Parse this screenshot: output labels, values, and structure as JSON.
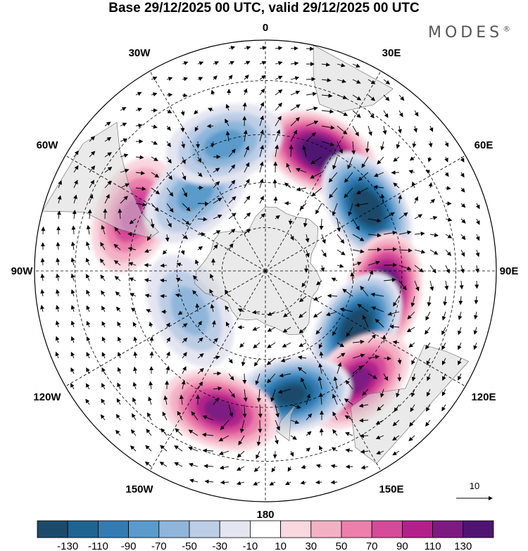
{
  "header": {
    "title": "Base 29/12/2025 00 UTC, valid 29/12/2025 00 UTC",
    "brand": "MODES",
    "brand_mark": "®"
  },
  "map": {
    "projection": "south-polar-stereographic",
    "longitude_labels": [
      "0",
      "30E",
      "60E",
      "90E",
      "120E",
      "150E",
      "180",
      "150W",
      "120W",
      "90W",
      "60W",
      "30W"
    ],
    "reference_vector": {
      "label": "10"
    },
    "anomaly_centers": [
      {
        "name": "positive-center",
        "lon": 25,
        "lat": -47,
        "value": 130
      },
      {
        "name": "negative-center",
        "lon": 58,
        "lat": -50,
        "value": -130
      },
      {
        "name": "positive-center",
        "lon": 100,
        "lat": -50,
        "value": 130
      },
      {
        "name": "negative-center",
        "lon": 122,
        "lat": -54,
        "value": -130
      },
      {
        "name": "positive-center",
        "lon": 140,
        "lat": -43,
        "value": 90
      },
      {
        "name": "negative-center",
        "lon": 168,
        "lat": -48,
        "value": -110
      },
      {
        "name": "positive-center",
        "lon": -162,
        "lat": -42,
        "value": 90
      },
      {
        "name": "negative-center",
        "lon": -118,
        "lat": -61,
        "value": -30
      },
      {
        "name": "positive-center",
        "lon": -67,
        "lat": -43,
        "value": 70
      },
      {
        "name": "negative-center",
        "lon": -42,
        "lat": -55,
        "value": -50
      },
      {
        "name": "negative-center",
        "lon": -18,
        "lat": -46,
        "value": -50
      }
    ]
  },
  "colorbar": {
    "tick_labels": [
      "-130",
      "-110",
      "-90",
      "-70",
      "-50",
      "-30",
      "-10",
      "10",
      "30",
      "50",
      "70",
      "90",
      "110",
      "130"
    ],
    "colors": [
      "#1b4a6b",
      "#1f6391",
      "#337cb3",
      "#5a9bcb",
      "#8fb6da",
      "#bccde6",
      "#e4e5f1",
      "#ffffff",
      "#f9d8e0",
      "#f4b1c5",
      "#ec7fab",
      "#d54b99",
      "#b3208a",
      "#7d1a82",
      "#4f1472"
    ]
  }
}
